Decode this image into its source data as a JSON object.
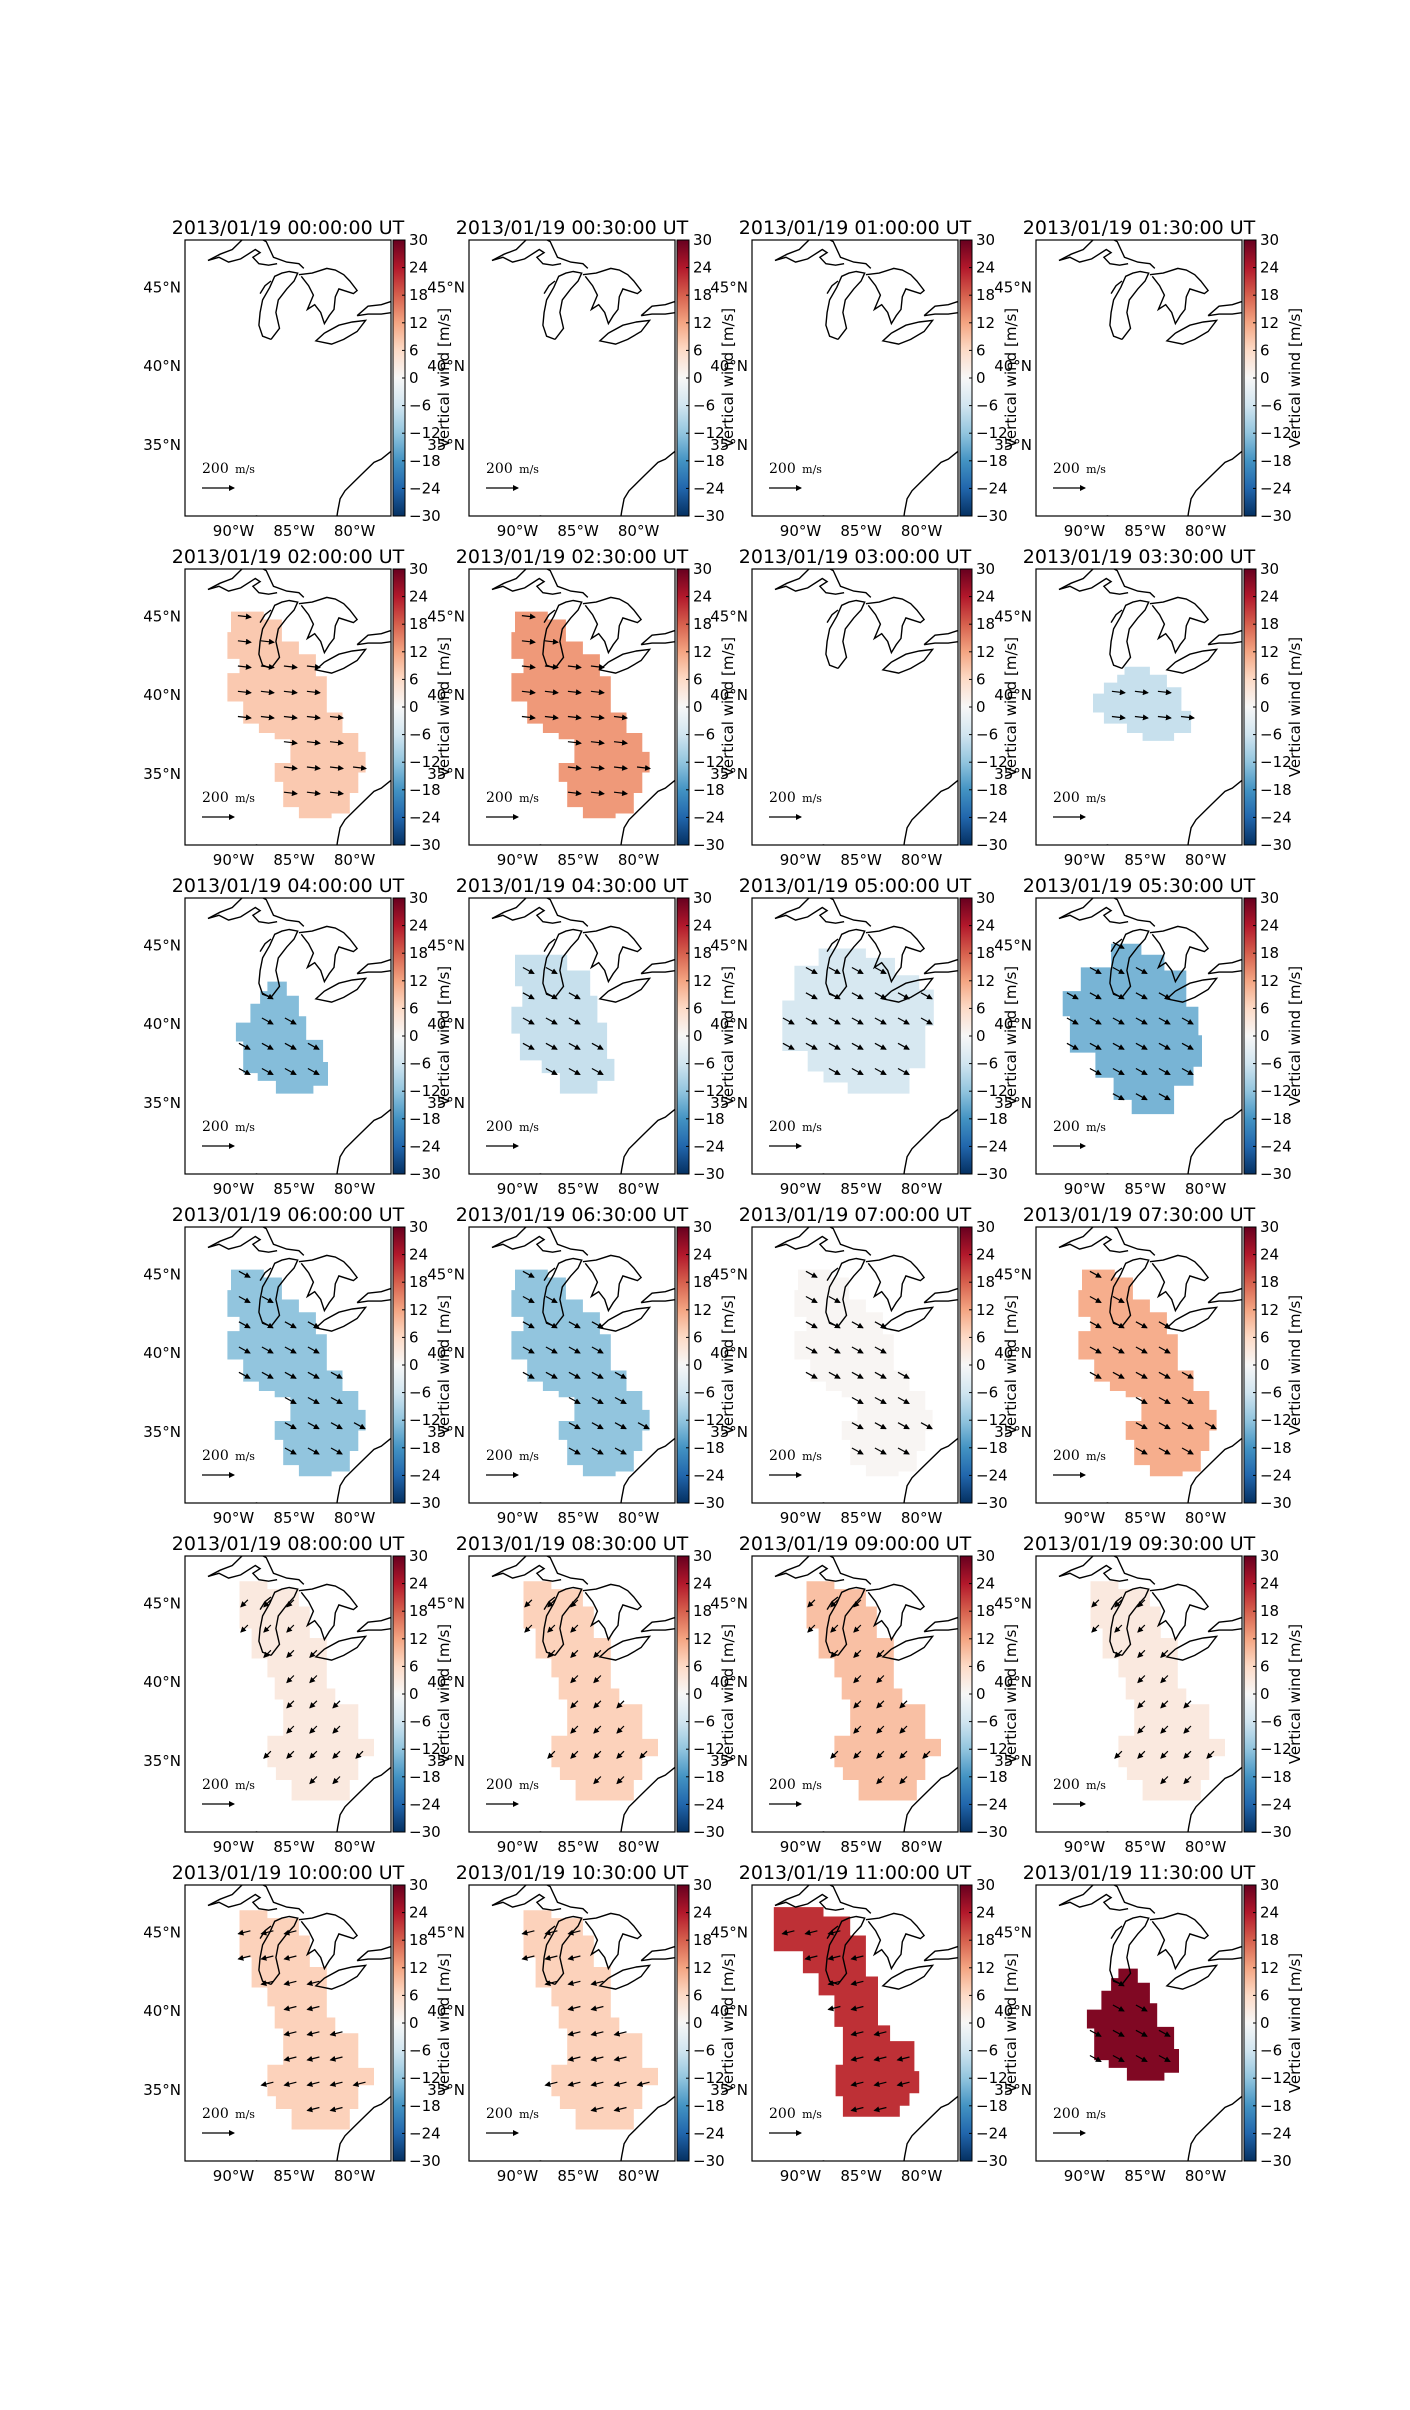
{
  "chart_data": {
    "type": "heatmap",
    "layout": {
      "rows": 6,
      "cols": 4
    },
    "colorbar": {
      "label": "Vertical wind [m/s]",
      "vmin": -30,
      "vmax": 30,
      "ticks": [
        "30",
        "24",
        "18",
        "12",
        "6",
        "0",
        "−6",
        "−12",
        "−18",
        "−24",
        "−30"
      ],
      "colormap": "RdBu_r"
    },
    "axes": {
      "x_ticks": [
        "90°W",
        "85°W",
        "80°W"
      ],
      "y_ticks": [
        "45°N",
        "40°N",
        "35°N"
      ],
      "lon_range": [
        -94,
        -77
      ],
      "lat_range": [
        30.5,
        48
      ]
    },
    "vector_scale_label": "200",
    "vector_scale_unit_num": "m",
    "vector_scale_unit_den": "s",
    "panels": [
      {
        "title": "2013/01/19 00:00:00 UT",
        "value": null,
        "shape": "none",
        "arrows": "none"
      },
      {
        "title": "2013/01/19 00:30:00 UT",
        "value": null,
        "shape": "none",
        "arrows": "none"
      },
      {
        "title": "2013/01/19 01:00:00 UT",
        "value": null,
        "shape": "none",
        "arrows": "none"
      },
      {
        "title": "2013/01/19 01:30:00 UT",
        "value": null,
        "shape": "none",
        "arrows": "none"
      },
      {
        "title": "2013/01/19 02:00:00 UT",
        "value": 8,
        "shape": "A",
        "arrows": "east"
      },
      {
        "title": "2013/01/19 02:30:00 UT",
        "value": 13,
        "shape": "A",
        "arrows": "east"
      },
      {
        "title": "2013/01/19 03:00:00 UT",
        "value": null,
        "shape": "none",
        "arrows": "none"
      },
      {
        "title": "2013/01/19 03:30:00 UT",
        "value": -7,
        "shape": "B",
        "arrows": "east"
      },
      {
        "title": "2013/01/19 04:00:00 UT",
        "value": -13,
        "shape": "C",
        "arrows": "southeast"
      },
      {
        "title": "2013/01/19 04:30:00 UT",
        "value": -7,
        "shape": "D",
        "arrows": "southeast"
      },
      {
        "title": "2013/01/19 05:00:00 UT",
        "value": -5,
        "shape": "E",
        "arrows": "southeast"
      },
      {
        "title": "2013/01/19 05:30:00 UT",
        "value": -14,
        "shape": "F",
        "arrows": "southeast"
      },
      {
        "title": "2013/01/19 06:00:00 UT",
        "value": -12,
        "shape": "A",
        "arrows": "southeast"
      },
      {
        "title": "2013/01/19 06:30:00 UT",
        "value": -12,
        "shape": "A",
        "arrows": "southeast"
      },
      {
        "title": "2013/01/19 07:00:00 UT",
        "value": 0.5,
        "shape": "A",
        "arrows": "southeast"
      },
      {
        "title": "2013/01/19 07:30:00 UT",
        "value": 11,
        "shape": "A",
        "arrows": "southeast"
      },
      {
        "title": "2013/01/19 08:00:00 UT",
        "value": 3,
        "shape": "G",
        "arrows": "southwest"
      },
      {
        "title": "2013/01/19 08:30:00 UT",
        "value": 7,
        "shape": "G",
        "arrows": "southwest"
      },
      {
        "title": "2013/01/19 09:00:00 UT",
        "value": 9,
        "shape": "G",
        "arrows": "southwest"
      },
      {
        "title": "2013/01/19 09:30:00 UT",
        "value": 3,
        "shape": "G",
        "arrows": "southwest"
      },
      {
        "title": "2013/01/19 10:00:00 UT",
        "value": 7,
        "shape": "G",
        "arrows": "west"
      },
      {
        "title": "2013/01/19 10:30:00 UT",
        "value": 7,
        "shape": "G",
        "arrows": "west"
      },
      {
        "title": "2013/01/19 11:00:00 UT",
        "value": 22,
        "shape": "H",
        "arrows": "west"
      },
      {
        "title": "2013/01/19 11:30:00 UT",
        "value": 28,
        "shape": "C",
        "arrows": "southeast"
      }
    ]
  }
}
